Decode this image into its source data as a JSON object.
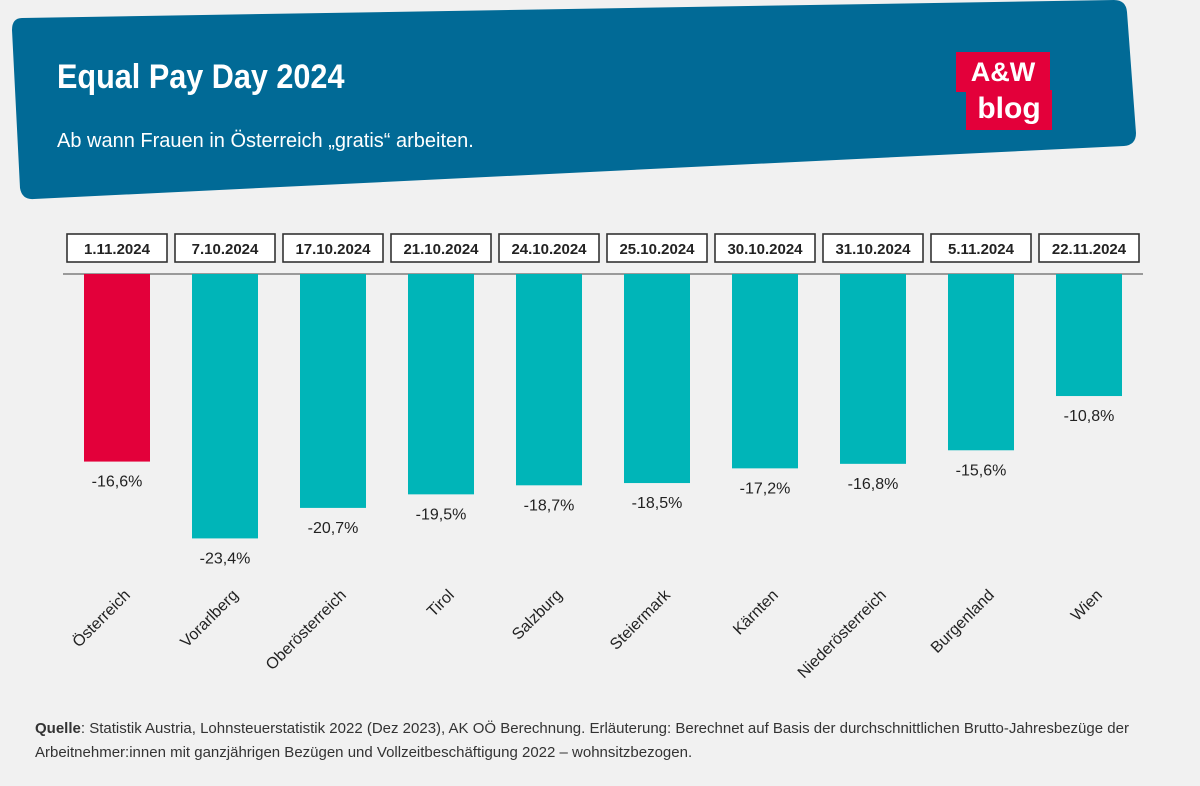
{
  "header": {
    "title": "Equal Pay Day 2024",
    "subtitle": "Ab wann Frauen in Österreich „gratis“ arbeiten.",
    "logo_line1": "A&W",
    "logo_line2": "blog"
  },
  "colors": {
    "header_bg": "#016a96",
    "highlight": "#e3003a",
    "bar": "#00b5b8",
    "background": "#f1f1f1"
  },
  "chart_data": {
    "type": "bar",
    "title": "Equal Pay Day 2024",
    "subtitle": "Ab wann Frauen in Österreich „gratis“ arbeiten.",
    "categories": [
      "Österreich",
      "Vorarlberg",
      "Oberösterreich",
      "Tirol",
      "Salzburg",
      "Steiermark",
      "Kärnten",
      "Niederösterreich",
      "Burgenland",
      "Wien"
    ],
    "values": [
      -16.6,
      -23.4,
      -20.7,
      -19.5,
      -18.7,
      -18.5,
      -17.2,
      -16.8,
      -15.6,
      -10.8
    ],
    "value_labels": [
      "-16,6%",
      "-23,4%",
      "-20,7%",
      "-19,5%",
      "-18,7%",
      "-18,5%",
      "-17,2%",
      "-16,8%",
      "-15,6%",
      "-10,8%"
    ],
    "dates": [
      "1.11.2024",
      "7.10.2024",
      "17.10.2024",
      "21.10.2024",
      "24.10.2024",
      "25.10.2024",
      "30.10.2024",
      "31.10.2024",
      "5.11.2024",
      "22.11.2024"
    ],
    "highlight_index": 0,
    "ylim": [
      -25,
      0
    ],
    "xlabel": "",
    "ylabel": "",
    "grid": false,
    "legend": "none"
  },
  "footer": {
    "source_label": "Quelle",
    "source_text": ": Statistik Austria, Lohnsteuerstatistik 2022 (Dez 2023), AK OÖ Berechnung. Erläuterung: Berechnet auf Basis der durchschnittlichen Brutto-Jahresbezüge der Arbeitnehmer:innen mit ganzjährigen Bezügen und Vollzeitbeschäftigung 2022 – wohnsitzbezogen."
  }
}
